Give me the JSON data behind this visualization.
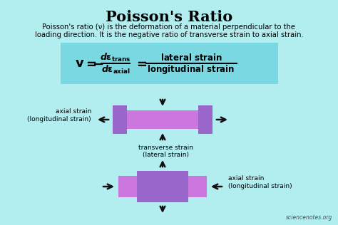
{
  "title": "Poisson's Ratio",
  "bg_color": "#b2edf0",
  "formula_bg": "#7ad8e2",
  "desc1": "Poisson's ratio (ν) is the deformation of a material perpendicular to the",
  "desc2": "loading direction. It is the negative ratio of transverse strain to axial strain.",
  "box1_wide_color": "#cc77dd",
  "box1_narrow_color": "#9966cc",
  "box2_wide_color": "#9966cc",
  "box2_narrow_color": "#cc77dd",
  "arrow_color": "#111111",
  "label_top": "axial strain\n(longitudinal strain)",
  "label_mid": "transverse strain\n(lateral strain)",
  "label_bot": "axial strain\n(longitudinal strain)",
  "watermark": "sciencenotes.org"
}
